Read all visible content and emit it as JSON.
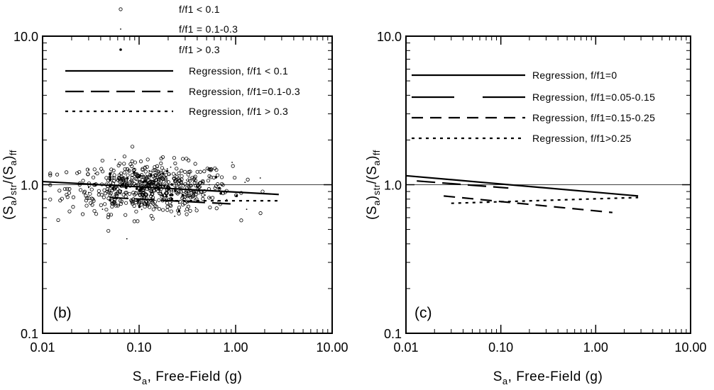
{
  "chart_data": [
    {
      "type": "scatter",
      "panel_label": "(b)",
      "xlabel": "S_a, Free-Field (g)",
      "ylabel": "(S_a)str/(S_a)ff",
      "xscale": "log",
      "yscale": "log",
      "xlim": [
        0.01,
        10.0
      ],
      "ylim": [
        0.1,
        10.0
      ],
      "x_ticks": [
        "0.01",
        "0.10",
        "1.00",
        "10.00"
      ],
      "y_ticks": [
        "0.1",
        "1.0",
        "10.0"
      ],
      "reference_line_y": 1.0,
      "grid": false,
      "legend_placement": "top-center",
      "series": [
        {
          "name": "f/f1 < 0.1",
          "marker": "open-circle",
          "n_points": 520,
          "x_range": [
            0.012,
            2.8
          ],
          "y_range": [
            0.37,
            2.5
          ]
        },
        {
          "name": "f/f1 = 0.1-0.3",
          "marker": "small-dot",
          "n_points": 80,
          "x_range": [
            0.03,
            1.8
          ],
          "y_range": [
            0.33,
            1.5
          ]
        },
        {
          "name": "f/f1 > 0.3",
          "marker": "filled-dot",
          "n_points": 45,
          "x_range": [
            0.05,
            2.8
          ],
          "y_range": [
            0.4,
            2.45
          ]
        }
      ],
      "regressions": [
        {
          "name": "Regression, f/f1 < 0.1",
          "style": "solid",
          "x": [
            0.01,
            2.8
          ],
          "y": [
            1.05,
            0.86
          ]
        },
        {
          "name": "Regression, f/f1=0.1-0.3",
          "style": "long-dash",
          "x": [
            0.05,
            1.0
          ],
          "y": [
            0.82,
            0.74
          ]
        },
        {
          "name": "Regression, f/f1 > 0.3",
          "style": "dotted",
          "x": [
            0.2,
            2.8
          ],
          "y": [
            0.78,
            0.78
          ]
        }
      ]
    },
    {
      "type": "line",
      "panel_label": "(c)",
      "xlabel": "S_a, Free-Field (g)",
      "ylabel": "(S_a)str/(S_a)ff",
      "xscale": "log",
      "yscale": "log",
      "xlim": [
        0.01,
        10.0
      ],
      "ylim": [
        0.1,
        10.0
      ],
      "x_ticks": [
        "0.01",
        "0.10",
        "1.00",
        "10.00"
      ],
      "y_ticks": [
        "0.1",
        "1.0",
        "10.0"
      ],
      "reference_line_y": 1.0,
      "grid": false,
      "legend_placement": "top-right",
      "series": [
        {
          "name": "Regression, f/f1=0",
          "style": "solid",
          "x": [
            0.01,
            2.8
          ],
          "y": [
            1.15,
            0.84
          ]
        },
        {
          "name": "Regression, f/f1=0.05-0.15",
          "style": "long-dash",
          "x": [
            0.013,
            0.12
          ],
          "y": [
            1.06,
            0.95
          ]
        },
        {
          "name": "Regression, f/f1=0.15-0.25",
          "style": "dashed",
          "x": [
            0.025,
            1.5
          ],
          "y": [
            0.84,
            0.65
          ]
        },
        {
          "name": "Regression, f/f1>0.25",
          "style": "dotted",
          "x": [
            0.03,
            2.8
          ],
          "y": [
            0.75,
            0.82
          ]
        }
      ]
    }
  ]
}
